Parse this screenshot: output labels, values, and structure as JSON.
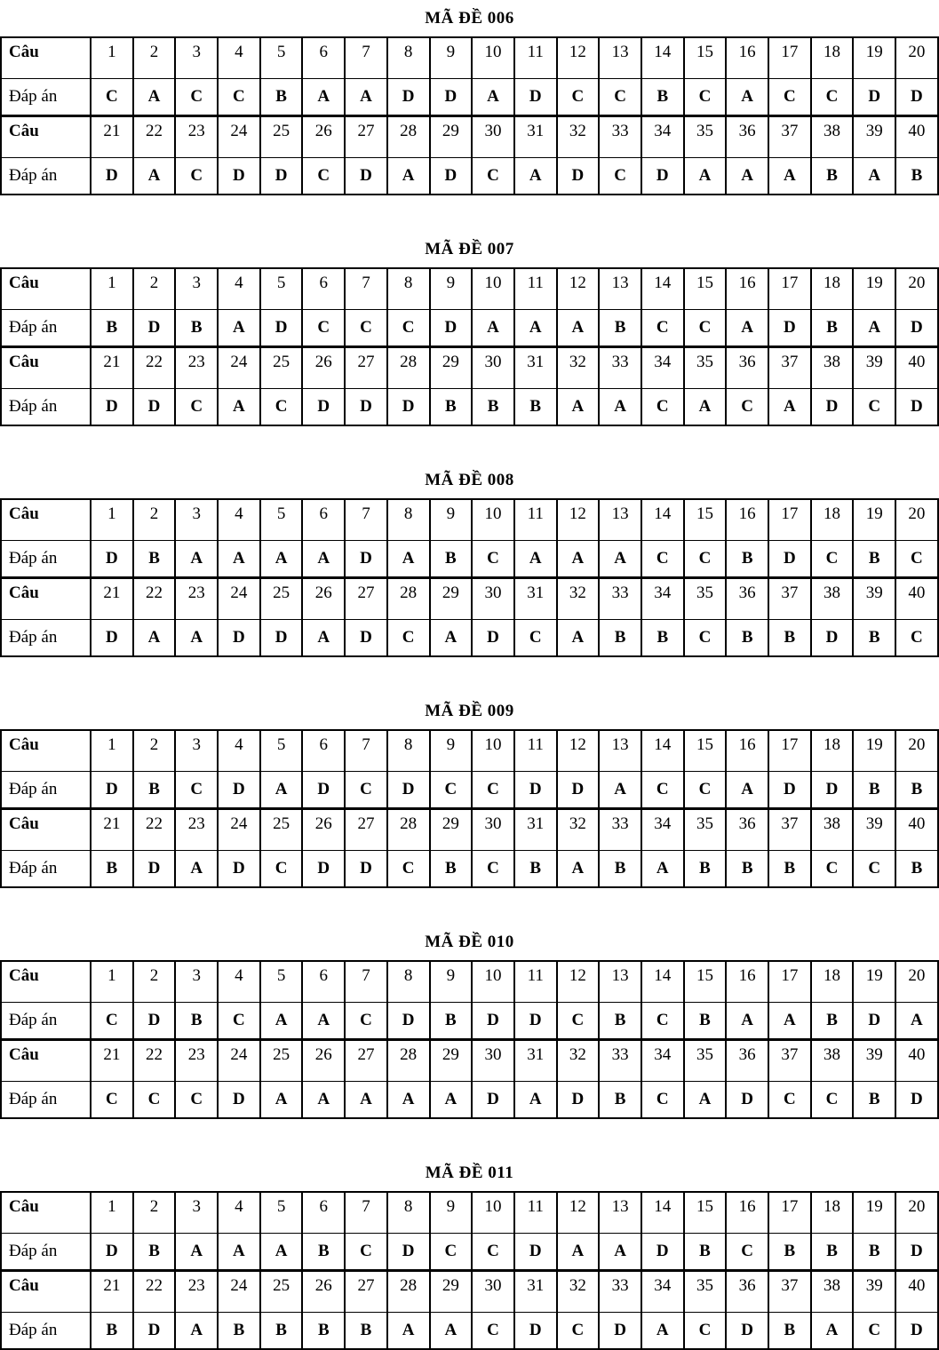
{
  "labels": {
    "question_row": "Câu",
    "answer_row": "Đáp án"
  },
  "question_numbers_1_20": [
    1,
    2,
    3,
    4,
    5,
    6,
    7,
    8,
    9,
    10,
    11,
    12,
    13,
    14,
    15,
    16,
    17,
    18,
    19,
    20
  ],
  "question_numbers_21_40": [
    21,
    22,
    23,
    24,
    25,
    26,
    27,
    28,
    29,
    30,
    31,
    32,
    33,
    34,
    35,
    36,
    37,
    38,
    39,
    40
  ],
  "tables": [
    {
      "title": "MÃ ĐỀ 006",
      "answers_1_20": [
        "C",
        "A",
        "C",
        "C",
        "B",
        "A",
        "A",
        "D",
        "D",
        "A",
        "D",
        "C",
        "C",
        "B",
        "C",
        "A",
        "C",
        "C",
        "D",
        "D"
      ],
      "answers_21_40": [
        "D",
        "A",
        "C",
        "D",
        "D",
        "C",
        "D",
        "A",
        "D",
        "C",
        "A",
        "D",
        "C",
        "D",
        "A",
        "A",
        "A",
        "B",
        "A",
        "B"
      ]
    },
    {
      "title": "MÃ ĐỀ 007",
      "answers_1_20": [
        "B",
        "D",
        "B",
        "A",
        "D",
        "C",
        "C",
        "C",
        "D",
        "A",
        "A",
        "A",
        "B",
        "C",
        "C",
        "A",
        "D",
        "B",
        "A",
        "D"
      ],
      "answers_21_40": [
        "D",
        "D",
        "C",
        "A",
        "C",
        "D",
        "D",
        "D",
        "B",
        "B",
        "B",
        "A",
        "A",
        "C",
        "A",
        "C",
        "A",
        "D",
        "C",
        "D"
      ]
    },
    {
      "title": "MÃ ĐỀ 008",
      "answers_1_20": [
        "D",
        "B",
        "A",
        "A",
        "A",
        "A",
        "D",
        "A",
        "B",
        "C",
        "A",
        "A",
        "A",
        "C",
        "C",
        "B",
        "D",
        "C",
        "B",
        "C"
      ],
      "answers_21_40": [
        "D",
        "A",
        "A",
        "D",
        "D",
        "A",
        "D",
        "C",
        "A",
        "D",
        "C",
        "A",
        "B",
        "B",
        "C",
        "B",
        "B",
        "D",
        "B",
        "C"
      ]
    },
    {
      "title": "MÃ ĐỀ 009",
      "answers_1_20": [
        "D",
        "B",
        "C",
        "D",
        "A",
        "D",
        "C",
        "D",
        "C",
        "C",
        "D",
        "D",
        "A",
        "C",
        "C",
        "A",
        "D",
        "D",
        "B",
        "B"
      ],
      "answers_21_40": [
        "B",
        "D",
        "A",
        "D",
        "C",
        "D",
        "D",
        "C",
        "B",
        "C",
        "B",
        "A",
        "B",
        "A",
        "B",
        "B",
        "B",
        "C",
        "C",
        "B"
      ]
    },
    {
      "title": "MÃ ĐỀ 010",
      "answers_1_20": [
        "C",
        "D",
        "B",
        "C",
        "A",
        "A",
        "C",
        "D",
        "B",
        "D",
        "D",
        "C",
        "B",
        "C",
        "B",
        "A",
        "A",
        "B",
        "D",
        "A"
      ],
      "answers_21_40": [
        "C",
        "C",
        "C",
        "D",
        "A",
        "A",
        "A",
        "A",
        "A",
        "D",
        "A",
        "D",
        "B",
        "C",
        "A",
        "D",
        "C",
        "C",
        "B",
        "D"
      ]
    },
    {
      "title": "MÃ ĐỀ 011",
      "answers_1_20": [
        "D",
        "B",
        "A",
        "A",
        "A",
        "B",
        "C",
        "D",
        "C",
        "C",
        "D",
        "A",
        "A",
        "D",
        "B",
        "C",
        "B",
        "B",
        "B",
        "D"
      ],
      "answers_21_40": [
        "B",
        "D",
        "A",
        "B",
        "B",
        "B",
        "B",
        "A",
        "A",
        "C",
        "D",
        "C",
        "D",
        "A",
        "C",
        "D",
        "B",
        "A",
        "C",
        "D"
      ]
    }
  ]
}
